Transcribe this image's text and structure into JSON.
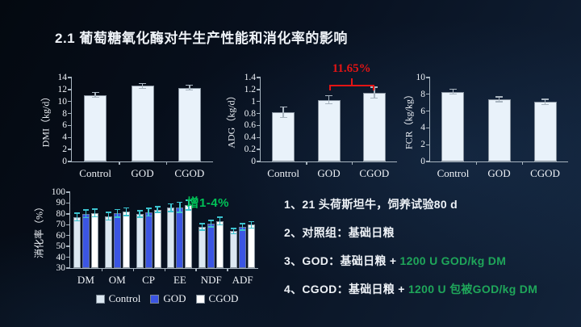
{
  "slide": {
    "title": "2.1 葡萄糖氧化酶对牛生产性能和消化率的影响"
  },
  "colors": {
    "background_dark": "#040910",
    "background_light": "#12233a",
    "text": "#eef2f7",
    "axis": "#a7b4bf",
    "bar_light": "#e9f2fa",
    "bar_control": "#dce8f2",
    "bar_god_blue": "#3b55e3",
    "bar_cgod_white": "#ffffff",
    "error_gray": "#a8b4bf",
    "error_cyan": "#3cc3cf",
    "annotation_red": "#e31414",
    "annotation_green": "#00c257",
    "note_green": "#1fa65a"
  },
  "chart_data": [
    {
      "id": "dmi",
      "type": "bar",
      "title": "",
      "xlabel": "",
      "ylabel": "DMI（kg/d）",
      "categories": [
        "Control",
        "GOD",
        "CGOD"
      ],
      "values": [
        11.1,
        12.6,
        12.3
      ],
      "errors": [
        0.4,
        0.4,
        0.4
      ],
      "ylim": [
        0,
        14
      ],
      "ytick_step": 2,
      "grid": false,
      "legend": false,
      "bar_color": "#e9f2fa",
      "error_color": "#a8b4bf"
    },
    {
      "id": "adg",
      "type": "bar",
      "title": "",
      "xlabel": "",
      "ylabel": "ADG（kg/d）",
      "categories": [
        "Control",
        "GOD",
        "CGOD"
      ],
      "values": [
        0.82,
        1.03,
        1.15
      ],
      "errors": [
        0.09,
        0.07,
        0.09
      ],
      "ylim": [
        0,
        1.4
      ],
      "ytick_step": 0.2,
      "grid": false,
      "legend": false,
      "bar_color": "#e9f2fa",
      "error_color": "#a8b4bf",
      "bracket": {
        "from": 1,
        "to": 2,
        "value": 1.28,
        "text": "11.65%",
        "color": "#e31414"
      }
    },
    {
      "id": "fcr",
      "type": "bar",
      "title": "",
      "xlabel": "",
      "ylabel": "FCR（kg/kg）",
      "categories": [
        "Control",
        "GOD",
        "CGOD"
      ],
      "values": [
        8.3,
        7.4,
        7.1
      ],
      "errors": [
        0.3,
        0.3,
        0.3
      ],
      "ylim": [
        0,
        10
      ],
      "ytick_step": 2,
      "grid": false,
      "legend": false,
      "bar_color": "#e9f2fa",
      "error_color": "#a8b4bf"
    },
    {
      "id": "digestibility",
      "type": "grouped-bar",
      "title": "",
      "xlabel": "",
      "ylabel": "消化率（%）",
      "categories": [
        "DM",
        "OM",
        "CP",
        "EE",
        "NDF",
        "ADF"
      ],
      "series": [
        {
          "name": "Control",
          "color": "#dce8f2",
          "values": [
            77,
            78,
            80,
            85.5,
            68,
            64
          ],
          "errors": [
            3.5,
            3.5,
            3,
            3.5,
            3,
            2.5
          ]
        },
        {
          "name": "GOD",
          "color": "#3b55e3",
          "values": [
            80,
            80.5,
            81.5,
            86,
            71,
            68
          ],
          "errors": [
            3.5,
            3.5,
            3.5,
            4.5,
            3,
            3
          ]
        },
        {
          "name": "CGOD",
          "color": "#ffffff",
          "values": [
            81,
            82,
            84,
            88,
            73.5,
            70
          ],
          "errors": [
            3.5,
            3.5,
            2.5,
            4.5,
            3.5,
            3
          ]
        }
      ],
      "ylim": [
        30,
        100
      ],
      "ytick_step": 10,
      "grid": false,
      "legend": true,
      "legend_position": "bottom",
      "error_color": "#3cc3cf",
      "note": {
        "text": "增1-4%",
        "color": "#00c257"
      }
    }
  ],
  "notes": {
    "items": [
      {
        "num": "1、",
        "text": "21 头荷斯坦牛，饲养试验80 d",
        "highlight": ""
      },
      {
        "num": "2、",
        "text": "对照组：基础日粮",
        "highlight": ""
      },
      {
        "num": "3、",
        "text": "GOD：基础日粮 + ",
        "highlight": "1200 U GOD/kg DM"
      },
      {
        "num": "4、",
        "text": "CGOD：基础日粮 + ",
        "highlight": "1200 U 包被GOD/kg DM"
      }
    ]
  }
}
